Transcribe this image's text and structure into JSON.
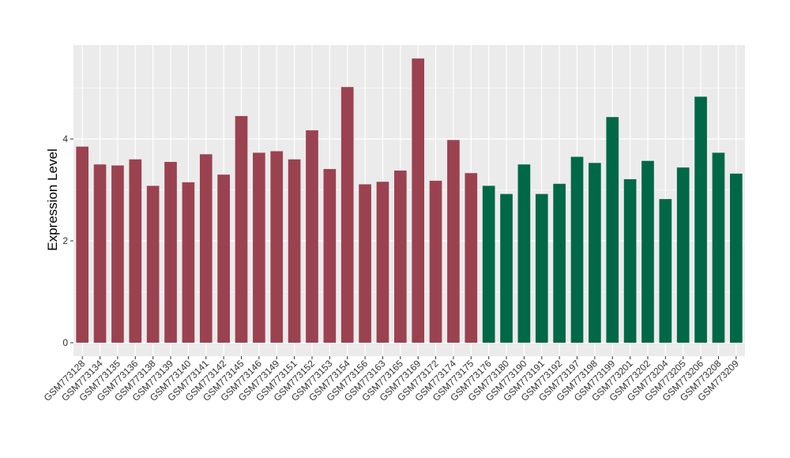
{
  "chart_data": {
    "type": "bar",
    "title": "",
    "xlabel": "",
    "ylabel": "Expression Level",
    "ylim": [
      -0.25,
      5.9
    ],
    "yticks": [
      0,
      2,
      4
    ],
    "grid": true,
    "legend": "none",
    "colors": {
      "group1": "#9b4250",
      "group2": "#006847",
      "panel": "#ebebeb",
      "grid": "#ffffff"
    },
    "categories": [
      "GSM773128",
      "GSM773134",
      "GSM773135",
      "GSM773136",
      "GSM773138",
      "GSM773139",
      "GSM773140",
      "GSM773141",
      "GSM773142",
      "GSM773145",
      "GSM773146",
      "GSM773149",
      "GSM773151",
      "GSM773152",
      "GSM773153",
      "GSM773154",
      "GSM773156",
      "GSM773163",
      "GSM773165",
      "GSM773169",
      "GSM773172",
      "GSM773174",
      "GSM773175",
      "GSM773176",
      "GSM773180",
      "GSM773190",
      "GSM773191",
      "GSM773192",
      "GSM773197",
      "GSM773198",
      "GSM773199",
      "GSM773201",
      "GSM773202",
      "GSM773204",
      "GSM773205",
      "GSM773206",
      "GSM773208",
      "GSM773209"
    ],
    "values": [
      3.85,
      3.5,
      3.48,
      3.6,
      3.08,
      3.55,
      3.15,
      3.7,
      3.3,
      4.45,
      3.73,
      3.76,
      3.6,
      4.17,
      3.41,
      5.02,
      3.11,
      3.16,
      3.38,
      5.58,
      3.18,
      3.98,
      3.33,
      3.08,
      2.92,
      3.5,
      2.92,
      3.12,
      3.65,
      3.53,
      4.43,
      3.21,
      3.57,
      2.82,
      3.44,
      4.83,
      3.73,
      3.32
    ],
    "groups": [
      1,
      1,
      1,
      1,
      1,
      1,
      1,
      1,
      1,
      1,
      1,
      1,
      1,
      1,
      1,
      1,
      1,
      1,
      1,
      1,
      1,
      1,
      1,
      2,
      2,
      2,
      2,
      2,
      2,
      2,
      2,
      2,
      2,
      2,
      2,
      2,
      2,
      2
    ]
  }
}
